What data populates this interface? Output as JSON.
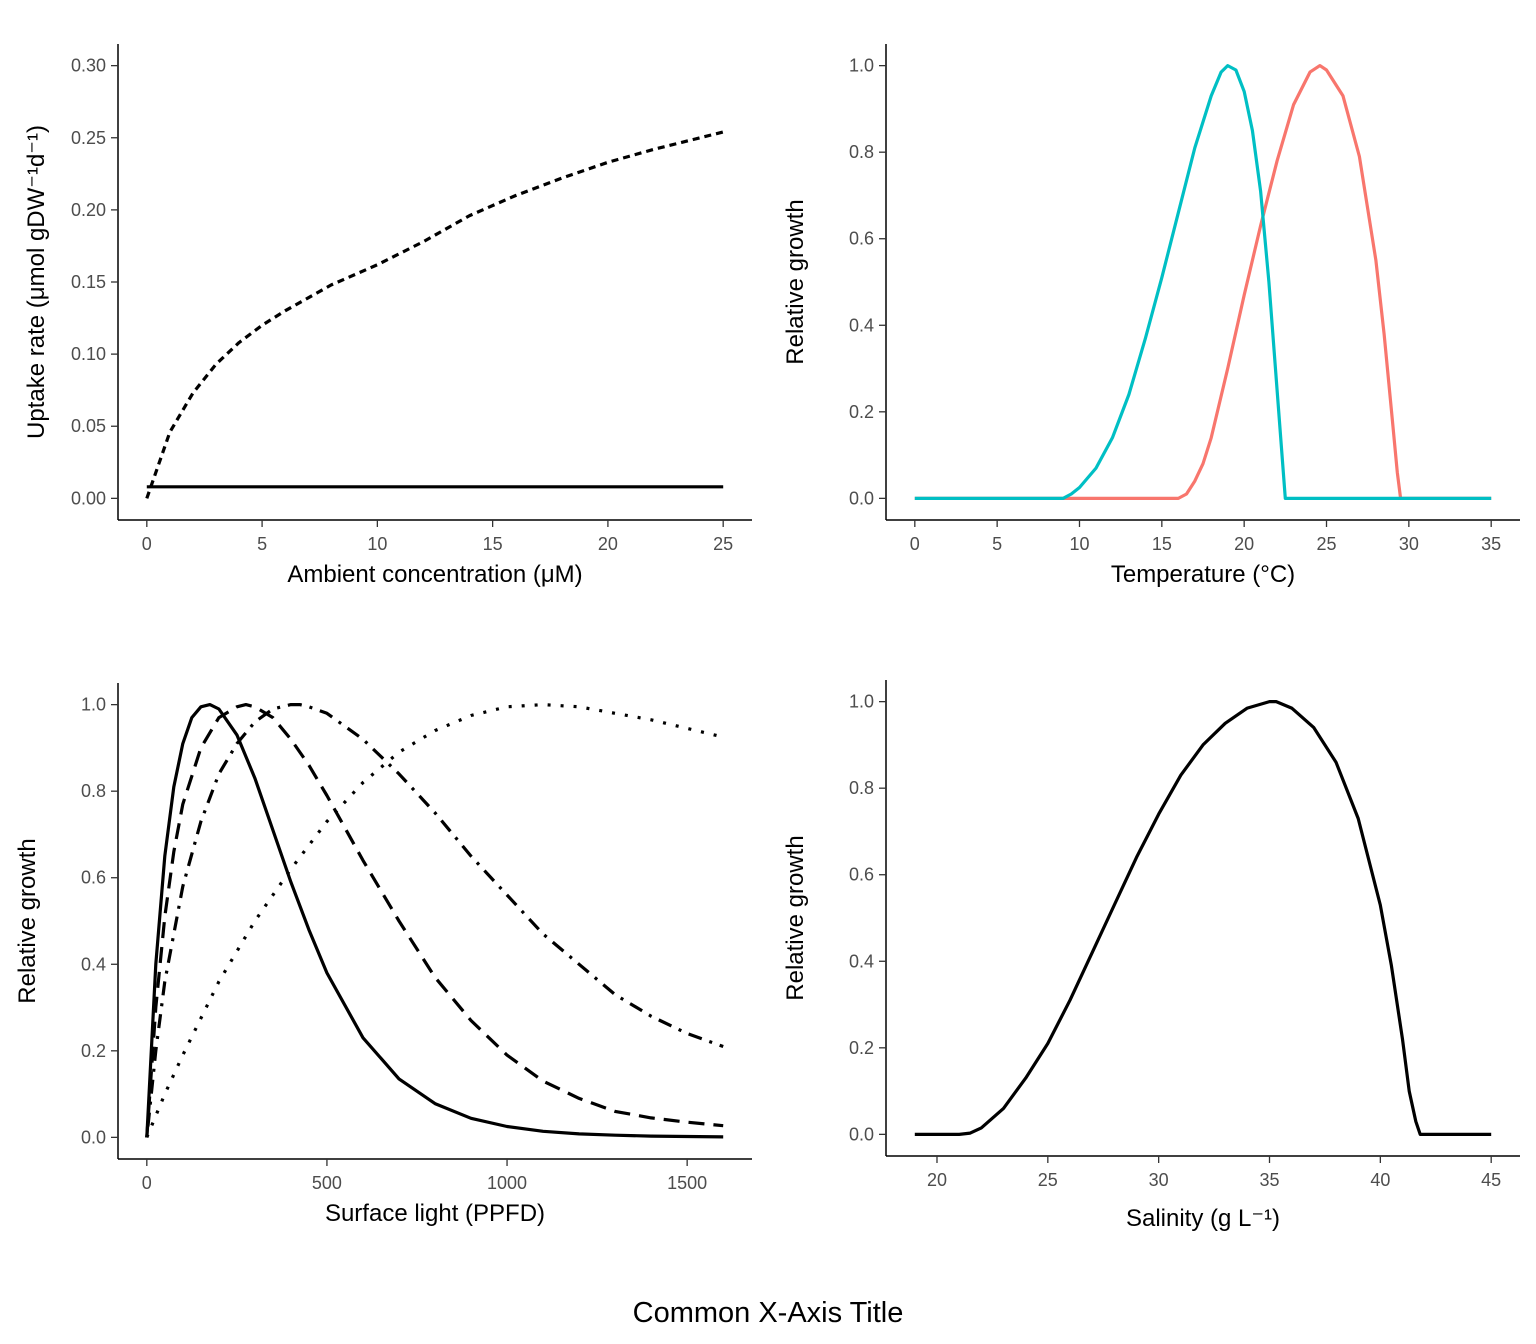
{
  "common_xlabel": "Common X-Axis Title",
  "chart_data": [
    {
      "panel": "top-left",
      "type": "line",
      "xlabel": "Ambient concentration (μM)",
      "ylabel": "Uptake rate (μmol gDW⁻¹d⁻¹)",
      "xlim": [
        -1.25,
        26.25
      ],
      "ylim": [
        -0.015,
        0.315
      ],
      "xticks": [
        0,
        5,
        10,
        15,
        20,
        25
      ],
      "yticks": [
        0.0,
        0.05,
        0.1,
        0.15,
        0.2,
        0.25,
        0.3
      ],
      "ytick_labels": [
        "0.00",
        "0.05",
        "0.10",
        "0.15",
        "0.20",
        "0.25",
        "0.30"
      ],
      "series": [
        {
          "color": "#000000",
          "linetype": "dotted-dash",
          "x": [
            0,
            1,
            2,
            3,
            4,
            5,
            6,
            8,
            10,
            12,
            14,
            16,
            18,
            20,
            22,
            25
          ],
          "y": [
            0.0,
            0.046,
            0.073,
            0.093,
            0.108,
            0.12,
            0.13,
            0.148,
            0.162,
            0.178,
            0.196,
            0.21,
            0.222,
            0.233,
            0.242,
            0.254
          ]
        },
        {
          "color": "#000000",
          "linetype": "solid",
          "x": [
            0,
            25
          ],
          "y": [
            0.008,
            0.008
          ]
        }
      ]
    },
    {
      "panel": "top-right",
      "type": "line",
      "xlabel": "Temperature (°C)",
      "ylabel": "Relative growth",
      "xlim": [
        -1.75,
        36.75
      ],
      "ylim": [
        -0.05,
        1.05
      ],
      "xticks": [
        0,
        5,
        10,
        15,
        20,
        25,
        30,
        35
      ],
      "yticks": [
        0.0,
        0.2,
        0.4,
        0.6,
        0.8,
        1.0
      ],
      "ytick_labels": [
        "0.0",
        "0.2",
        "0.4",
        "0.6",
        "0.8",
        "1.0"
      ],
      "series": [
        {
          "color": "#f8766d",
          "linetype": "solid",
          "x": [
            0,
            16,
            16.5,
            17,
            17.5,
            18,
            19,
            20,
            21,
            22,
            23,
            24,
            24.6,
            25,
            26,
            27,
            28,
            28.5,
            29,
            29.3,
            29.5,
            35
          ],
          "y": [
            0.0,
            0.0,
            0.01,
            0.04,
            0.08,
            0.14,
            0.3,
            0.47,
            0.63,
            0.78,
            0.91,
            0.985,
            1.0,
            0.99,
            0.93,
            0.79,
            0.55,
            0.38,
            0.18,
            0.06,
            0.0,
            0.0
          ]
        },
        {
          "color": "#00bfc4",
          "linetype": "solid",
          "x": [
            0,
            9,
            9.5,
            10,
            11,
            12,
            13,
            14,
            15,
            16,
            17,
            18,
            18.6,
            19,
            19.5,
            20,
            20.5,
            21,
            21.5,
            22,
            22.5,
            35
          ],
          "y": [
            0.0,
            0.0,
            0.01,
            0.025,
            0.07,
            0.14,
            0.24,
            0.37,
            0.51,
            0.66,
            0.81,
            0.93,
            0.985,
            1.0,
            0.99,
            0.94,
            0.85,
            0.71,
            0.5,
            0.25,
            0.0,
            0.0
          ]
        }
      ]
    },
    {
      "panel": "bottom-left",
      "type": "line",
      "xlabel": "Surface light (PPFD)",
      "ylabel": "Relative growth",
      "xlim": [
        -80,
        1680
      ],
      "ylim": [
        -0.05,
        1.05
      ],
      "xticks": [
        0,
        500,
        1000,
        1500
      ],
      "yticks": [
        0.0,
        0.2,
        0.4,
        0.6,
        0.8,
        1.0
      ],
      "ytick_labels": [
        "0.0",
        "0.2",
        "0.4",
        "0.6",
        "0.8",
        "1.0"
      ],
      "series": [
        {
          "color": "#000000",
          "linetype": "solid",
          "x": [
            0,
            25,
            50,
            75,
            100,
            125,
            150,
            175,
            200,
            250,
            300,
            350,
            400,
            450,
            500,
            600,
            700,
            800,
            900,
            1000,
            1100,
            1200,
            1300,
            1400,
            1500,
            1600
          ],
          "y": [
            0.0,
            0.4,
            0.65,
            0.81,
            0.91,
            0.97,
            0.995,
            1.0,
            0.99,
            0.93,
            0.83,
            0.71,
            0.59,
            0.48,
            0.38,
            0.23,
            0.135,
            0.078,
            0.044,
            0.025,
            0.014,
            0.008,
            0.005,
            0.003,
            0.002,
            0.001
          ]
        },
        {
          "color": "#000000",
          "linetype": "dashed",
          "x": [
            0,
            25,
            50,
            75,
            100,
            150,
            200,
            250,
            275,
            300,
            350,
            400,
            450,
            500,
            600,
            700,
            800,
            900,
            1000,
            1100,
            1200,
            1300,
            1400,
            1500,
            1600
          ],
          "y": [
            0.0,
            0.3,
            0.51,
            0.66,
            0.77,
            0.9,
            0.97,
            0.995,
            1.0,
            0.995,
            0.97,
            0.92,
            0.86,
            0.79,
            0.64,
            0.5,
            0.37,
            0.27,
            0.19,
            0.13,
            0.09,
            0.06,
            0.045,
            0.035,
            0.027
          ]
        },
        {
          "color": "#000000",
          "linetype": "dotdash",
          "x": [
            0,
            25,
            50,
            100,
            150,
            200,
            250,
            300,
            350,
            400,
            425,
            450,
            500,
            600,
            700,
            800,
            900,
            1000,
            1100,
            1200,
            1300,
            1400,
            1500,
            1600
          ],
          "y": [
            0.0,
            0.2,
            0.36,
            0.58,
            0.73,
            0.84,
            0.91,
            0.96,
            0.99,
            1.0,
            1.0,
            0.995,
            0.98,
            0.92,
            0.84,
            0.75,
            0.65,
            0.56,
            0.47,
            0.4,
            0.33,
            0.28,
            0.24,
            0.21
          ]
        },
        {
          "color": "#000000",
          "linetype": "dotted",
          "x": [
            0,
            50,
            100,
            200,
            300,
            400,
            500,
            600,
            700,
            800,
            900,
            1000,
            1100,
            1200,
            1300,
            1400,
            1500,
            1600
          ],
          "y": [
            0.0,
            0.1,
            0.19,
            0.36,
            0.5,
            0.62,
            0.73,
            0.82,
            0.89,
            0.94,
            0.975,
            0.995,
            1.0,
            0.995,
            0.98,
            0.965,
            0.945,
            0.925
          ]
        }
      ]
    },
    {
      "panel": "bottom-right",
      "type": "line",
      "xlabel": "Salinity (g L⁻¹)",
      "ylabel": "Relative growth",
      "xlim": [
        17.7,
        46.3
      ],
      "ylim": [
        -0.05,
        1.05
      ],
      "xticks": [
        20,
        25,
        30,
        35,
        40,
        45
      ],
      "yticks": [
        0.0,
        0.2,
        0.4,
        0.6,
        0.8,
        1.0
      ],
      "ytick_labels": [
        "0.0",
        "0.2",
        "0.4",
        "0.6",
        "0.8",
        "1.0"
      ],
      "series": [
        {
          "color": "#000000",
          "linetype": "solid",
          "x": [
            19,
            21,
            21.5,
            22,
            23,
            24,
            25,
            26,
            27,
            28,
            29,
            30,
            31,
            32,
            33,
            34,
            35,
            35.3,
            36,
            37,
            38,
            39,
            40,
            40.5,
            41,
            41.3,
            41.6,
            41.8,
            45
          ],
          "y": [
            0.0,
            0.0,
            0.003,
            0.015,
            0.06,
            0.13,
            0.21,
            0.31,
            0.42,
            0.53,
            0.64,
            0.74,
            0.83,
            0.9,
            0.95,
            0.985,
            1.0,
            1.0,
            0.985,
            0.94,
            0.86,
            0.73,
            0.53,
            0.39,
            0.22,
            0.1,
            0.03,
            0.0,
            0.0
          ]
        }
      ]
    }
  ]
}
